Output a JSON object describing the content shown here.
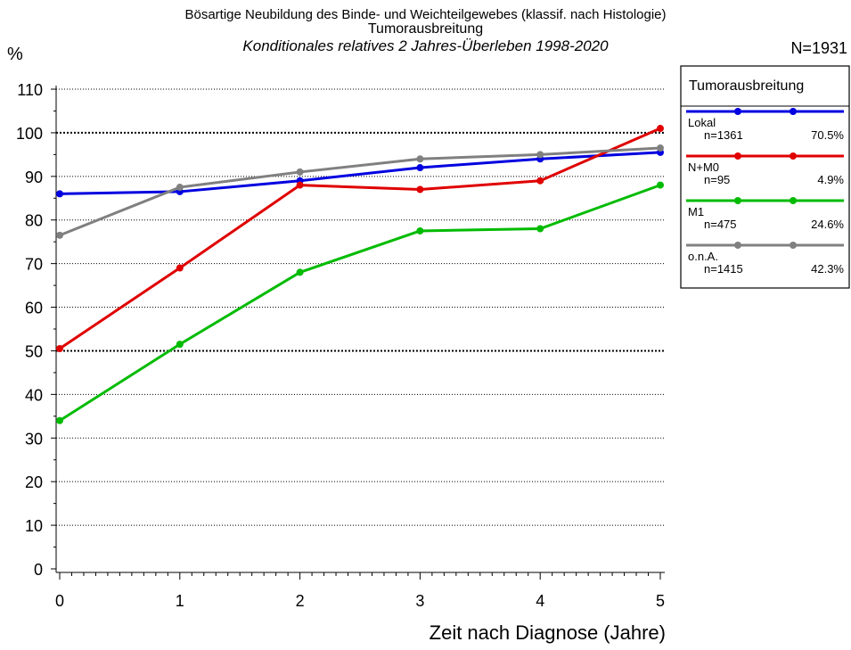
{
  "header": {
    "title": "Bösartige Neubildung des Binde- und Weichteilgewebes (klassif. nach Histologie)",
    "subtitle_group": "Tumorausbreitung",
    "subtitle": "Konditionales relatives 2 Jahres-Überleben 1998-2020",
    "total": "N=1931"
  },
  "chart_data": {
    "type": "line",
    "title": "Bösartige Neubildung des Binde- und Weichteilgewebes (klassif. nach Histologie)",
    "xlabel": "Zeit nach Diagnose (Jahre)",
    "ylabel": "%",
    "x": [
      0,
      1,
      2,
      3,
      4,
      5
    ],
    "xlim": [
      0,
      5
    ],
    "ylim": [
      0,
      110
    ],
    "yticks": [
      0,
      10,
      20,
      30,
      40,
      50,
      60,
      70,
      80,
      90,
      100,
      110
    ],
    "grid": "horizontal dotted",
    "legend": {
      "title": "Tumorausbreitung",
      "placement": "right"
    },
    "series": [
      {
        "name": "Lokal",
        "n": "n=1361",
        "pct": "70.5%",
        "color": "#0000e0",
        "values": [
          86.0,
          86.5,
          89.0,
          92.0,
          94.0,
          95.5
        ]
      },
      {
        "name": "N+M0",
        "n": "n=95",
        "pct": "4.9%",
        "color": "#e00000",
        "values": [
          50.5,
          69.0,
          88.0,
          87.0,
          89.0,
          101.0
        ]
      },
      {
        "name": "M1",
        "n": "n=475",
        "pct": "24.6%",
        "color": "#00bb00",
        "values": [
          34.0,
          51.5,
          68.0,
          77.5,
          78.0,
          88.0
        ]
      },
      {
        "name": "o.n.A.",
        "n": "n=1415",
        "pct": "42.3%",
        "color": "#808080",
        "values": [
          76.5,
          87.5,
          91.0,
          94.0,
          95.0,
          96.5
        ]
      }
    ]
  }
}
